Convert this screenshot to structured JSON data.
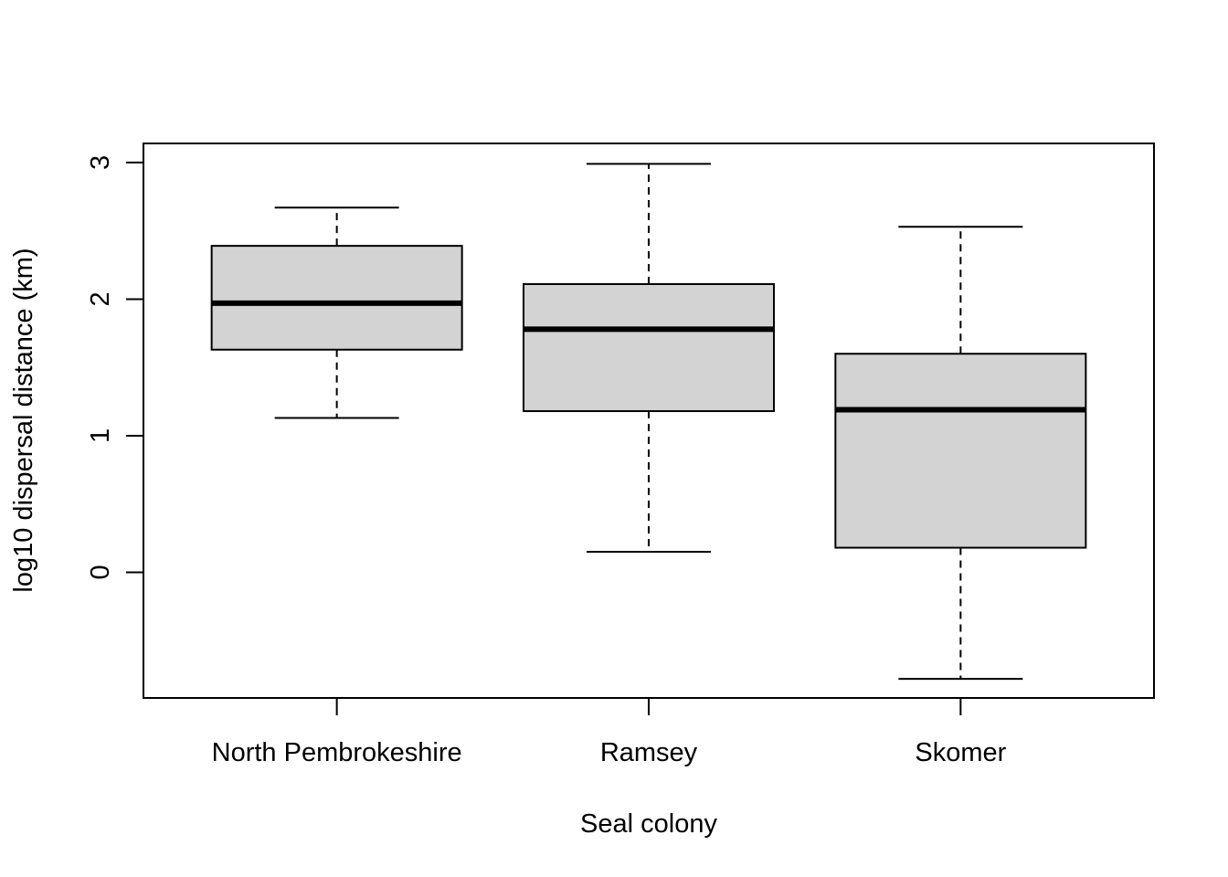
{
  "chart_data": {
    "type": "boxplot",
    "xlabel": "Seal colony",
    "ylabel": "log10 dispersal distance (km)",
    "ylim": [
      -0.92,
      3.14
    ],
    "yticks": [
      0,
      1,
      2,
      3
    ],
    "categories": [
      "North Pembrokeshire",
      "Ramsey",
      "Skomer"
    ],
    "boxes": [
      {
        "category": "North Pembrokeshire",
        "whisker_low": 1.13,
        "q1": 1.63,
        "median": 1.97,
        "q3": 2.39,
        "whisker_high": 2.67
      },
      {
        "category": "Ramsey",
        "whisker_low": 0.15,
        "q1": 1.18,
        "median": 1.78,
        "q3": 2.11,
        "whisker_high": 2.99
      },
      {
        "category": "Skomer",
        "whisker_low": -0.78,
        "q1": 0.18,
        "median": 1.19,
        "q3": 1.6,
        "whisker_high": 2.53
      }
    ],
    "box_fill": "#d3d3d3",
    "line_color": "#000000",
    "grid": false,
    "legend": "none"
  }
}
